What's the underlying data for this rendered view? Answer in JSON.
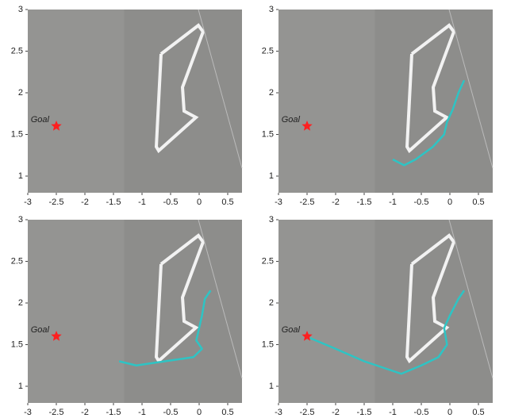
{
  "chart_data": [
    {
      "type": "scatter",
      "xlim": [
        -3,
        0.75
      ],
      "ylim": [
        0.8,
        3
      ],
      "xticks": [
        -3,
        -2.5,
        -2,
        -1.5,
        -1,
        -0.5,
        0,
        0.5
      ],
      "yticks": [
        1,
        1.5,
        2,
        2.5,
        3
      ],
      "goal": {
        "x": -2.5,
        "y": 1.6,
        "label": "Goal",
        "color": "#ff2020"
      }
    },
    {
      "type": "scatter",
      "xlim": [
        -3,
        0.75
      ],
      "ylim": [
        0.8,
        3
      ],
      "xticks": [
        -3,
        -2.5,
        -2,
        -1.5,
        -1,
        -0.5,
        0,
        0.5
      ],
      "yticks": [
        1,
        1.5,
        2,
        2.5,
        3
      ],
      "goal": {
        "x": -2.5,
        "y": 1.6,
        "label": "Goal",
        "color": "#ff2020"
      },
      "path": {
        "color": "#2ec4c4",
        "x": [
          0.25,
          0.15,
          0.05,
          -0.05,
          -0.1,
          -0.3,
          -0.6,
          -0.8,
          -1.0
        ],
        "y": [
          2.15,
          2.0,
          1.8,
          1.65,
          1.5,
          1.35,
          1.2,
          1.13,
          1.2
        ]
      }
    },
    {
      "type": "scatter",
      "xlim": [
        -3,
        0.75
      ],
      "ylim": [
        0.8,
        3
      ],
      "xticks": [
        -3,
        -2.5,
        -2,
        -1.5,
        -1,
        -0.5,
        0,
        0.5
      ],
      "yticks": [
        1,
        1.5,
        2,
        2.5,
        3
      ],
      "goal": {
        "x": -2.5,
        "y": 1.6,
        "label": "Goal",
        "color": "#ff2020"
      },
      "path": {
        "color": "#2ec4c4",
        "x": [
          0.2,
          0.1,
          0.05,
          0.0,
          -0.05,
          0.05,
          -0.1,
          -0.3,
          -0.6,
          -0.9,
          -1.1,
          -1.4
        ],
        "y": [
          2.15,
          2.05,
          1.85,
          1.7,
          1.55,
          1.45,
          1.35,
          1.33,
          1.3,
          1.27,
          1.25,
          1.3
        ]
      }
    },
    {
      "type": "scatter",
      "xlim": [
        -3,
        0.75
      ],
      "ylim": [
        0.8,
        3
      ],
      "xticks": [
        -3,
        -2.5,
        -2,
        -1.5,
        -1,
        -0.5,
        0,
        0.5
      ],
      "yticks": [
        1,
        1.5,
        2,
        2.5,
        3
      ],
      "goal": {
        "x": -2.5,
        "y": 1.6,
        "label": "Goal",
        "color": "#ff2020"
      },
      "path": {
        "color": "#2ec4c4",
        "x": [
          0.25,
          0.15,
          0.0,
          -0.1,
          -0.05,
          -0.2,
          -0.5,
          -0.85,
          -1.5,
          -2.0,
          -2.45
        ],
        "y": [
          2.15,
          2.05,
          1.85,
          1.7,
          1.5,
          1.35,
          1.25,
          1.15,
          1.3,
          1.45,
          1.58
        ]
      }
    }
  ]
}
